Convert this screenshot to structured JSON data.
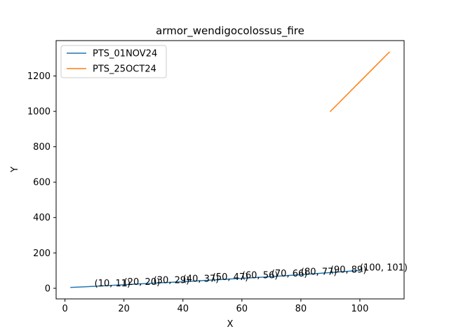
{
  "chart_data": {
    "type": "line",
    "title": "armor_wendigocolossus_fire",
    "xlabel": "X",
    "ylabel": "Y",
    "xlim": [
      -3,
      115
    ],
    "ylim": [
      -60,
      1400
    ],
    "x_ticks": [
      0,
      20,
      40,
      60,
      80,
      100
    ],
    "y_ticks": [
      0,
      200,
      400,
      600,
      800,
      1000,
      1200
    ],
    "grid": false,
    "legend_position": "top-left",
    "series": [
      {
        "name": "PTS_01NOV24",
        "color": "#1f77b4",
        "x": [
          2,
          10,
          20,
          30,
          40,
          50,
          60,
          70,
          80,
          90,
          100
        ],
        "y": [
          5,
          11,
          20,
          29,
          37,
          47,
          56,
          66,
          77,
          89,
          101
        ]
      },
      {
        "name": "PTS_25OCT24",
        "color": "#ff7f0e",
        "x": [
          90,
          110
        ],
        "y": [
          1000,
          1335
        ]
      }
    ],
    "annotations": [
      {
        "x": 10,
        "y": 11,
        "text": "(10, 11)"
      },
      {
        "x": 20,
        "y": 20,
        "text": "(20, 20)"
      },
      {
        "x": 30,
        "y": 29,
        "text": "(30, 29)"
      },
      {
        "x": 40,
        "y": 37,
        "text": "(40, 37)"
      },
      {
        "x": 50,
        "y": 47,
        "text": "(50, 47)"
      },
      {
        "x": 60,
        "y": 56,
        "text": "(60, 56)"
      },
      {
        "x": 70,
        "y": 66,
        "text": "(70, 66)"
      },
      {
        "x": 80,
        "y": 77,
        "text": "(80, 77)"
      },
      {
        "x": 90,
        "y": 89,
        "text": "(90, 89)"
      },
      {
        "x": 100,
        "y": 101,
        "text": "(100, 101)"
      }
    ]
  }
}
